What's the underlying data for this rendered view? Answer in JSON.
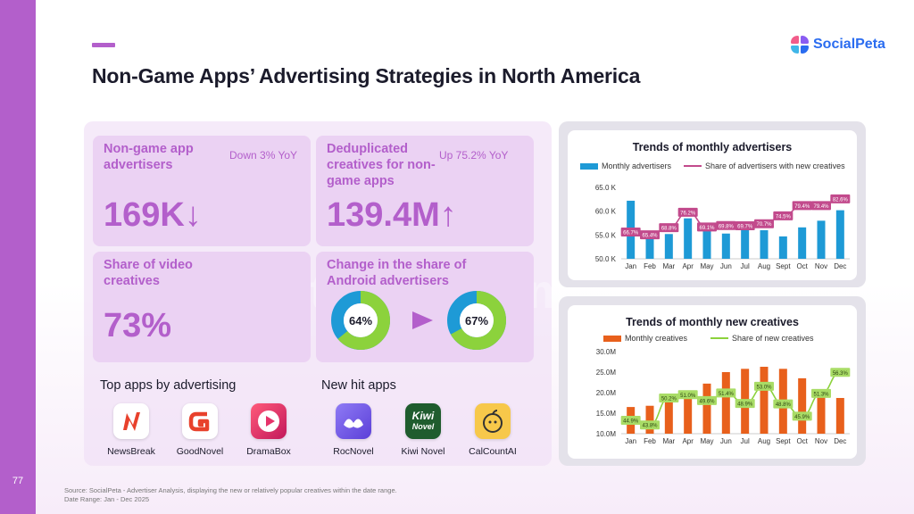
{
  "slide": {
    "number": "77",
    "title": "Non-Game Apps’ Advertising Strategies in North America",
    "logo": "SocialPeta",
    "watermark": "SocialPeta AdChampagne"
  },
  "stats": {
    "advertisers": {
      "label": "Non-game app advertisers",
      "note": "Down 3% YoY",
      "value": "169K↓"
    },
    "creatives": {
      "label": "Deduplicated creatives for non-game apps",
      "note": "Up 75.2% YoY",
      "value": "139.4M↑"
    },
    "video": {
      "label": "Share of video creatives",
      "value": "73%"
    },
    "android": {
      "label": "Change in the share of Android advertisers",
      "from": "64%",
      "to": "67%",
      "from_value": 64,
      "to_value": 67
    }
  },
  "top_apps": {
    "title": "Top apps by advertising",
    "apps": [
      {
        "name": "NewsBreak",
        "icon": "newsbreak-icon"
      },
      {
        "name": "GoodNovel",
        "icon": "goodnovel-icon"
      },
      {
        "name": "DramaBox",
        "icon": "dramabox-icon"
      }
    ]
  },
  "new_apps": {
    "title": "New hit apps",
    "apps": [
      {
        "name": "RocNovel",
        "icon": "rocnovel-icon"
      },
      {
        "name": "Kiwi Novel",
        "icon": "kiwinovel-icon",
        "icon_text": [
          "Kiwi",
          "Novel"
        ]
      },
      {
        "name": "CalCountAI",
        "icon": "calcountai-icon"
      }
    ]
  },
  "colors": {
    "accent": "#b35fcb",
    "bar_blue": "#1e9ad6",
    "line_pink": "#c24a8c",
    "bar_orange": "#e8601c",
    "line_green": "#8cd23c",
    "donut_green": "#8cd23c",
    "donut_blue": "#1e9ad6"
  },
  "source": {
    "line1": "Source: SocialPeta - Advertiser Analysis, displaying the new or relatively popular creatives within the date range.",
    "line2": "Date Range: Jan - Dec 2025"
  },
  "chart_data": [
    {
      "type": "bar",
      "title": "Trends of monthly advertisers",
      "categories": [
        "Jan",
        "Feb",
        "Mar",
        "Apr",
        "May",
        "Jun",
        "Jul",
        "Aug",
        "Sept",
        "Oct",
        "Nov",
        "Dec"
      ],
      "series": [
        {
          "name": "Monthly advertisers",
          "kind": "bar",
          "values": [
            62.2,
            55.4,
            55.2,
            58.5,
            57.0,
            55.3,
            56.0,
            56.0,
            54.7,
            56.6,
            58.0,
            60.2
          ]
        },
        {
          "name": "Share of advertisers with new creatives",
          "kind": "line",
          "values": [
            66.7,
            65.4,
            68.8,
            76.2,
            69.1,
            69.8,
            69.7,
            70.7,
            74.5,
            79.4,
            79.4,
            82.6
          ],
          "labels": [
            "66.7%",
            "65.4%",
            "68.8%",
            "76.2%",
            "69.1%",
            "69.8%",
            "69.7%",
            "70.7%",
            "74.5%",
            "79.4%",
            "79.4%",
            "82.6%"
          ]
        }
      ],
      "yticks": [
        "50.0 K",
        "55.0 K",
        "60.0 K",
        "65.0 K"
      ],
      "ylim": [
        50,
        65
      ]
    },
    {
      "type": "bar",
      "title": "Trends of monthly new creatives",
      "categories": [
        "Jan",
        "Feb",
        "Mar",
        "Apr",
        "May",
        "Jun",
        "Jul",
        "Aug",
        "Sept",
        "Oct",
        "Nov",
        "Dec"
      ],
      "series": [
        {
          "name": "Monthly creatives",
          "kind": "bar",
          "values": [
            16.5,
            16.8,
            18.5,
            20.5,
            22.2,
            25.0,
            25.8,
            26.3,
            25.8,
            23.5,
            19.5,
            18.7
          ]
        },
        {
          "name": "Share of new creatives",
          "kind": "line",
          "values": [
            44.9,
            43.8,
            50.2,
            51.0,
            49.6,
            51.4,
            48.9,
            53.0,
            48.8,
            45.9,
            51.3,
            56.3
          ],
          "labels": [
            "44.9%",
            "43.8%",
            "50.2%",
            "51.0%",
            "49.6%",
            "51.4%",
            "48.9%",
            "53.0%",
            "48.8%",
            "45.9%",
            "51.3%",
            "56.3%"
          ]
        }
      ],
      "yticks": [
        "10.0M",
        "15.0M",
        "20.0M",
        "25.0M",
        "30.0M"
      ],
      "ylim": [
        10,
        30
      ]
    }
  ]
}
